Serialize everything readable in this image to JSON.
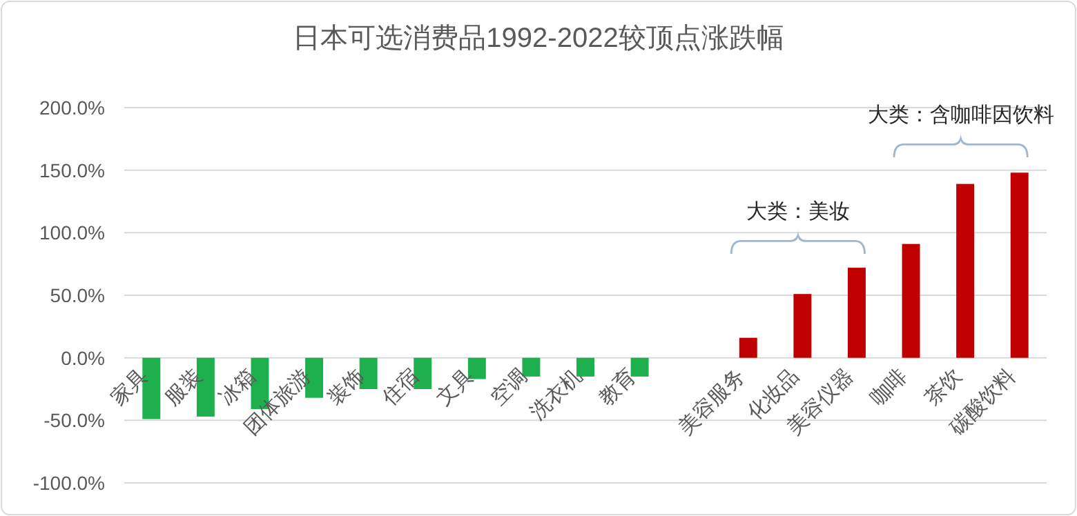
{
  "chart_data": {
    "type": "bar",
    "title": "日本可选消费品1992-2022较顶点涨跌幅",
    "categories": [
      "家具",
      "服装",
      "冰箱",
      "团体旅游",
      "装饰",
      "住宿",
      "文具",
      "空调",
      "洗衣机",
      "教育",
      null,
      "美容服务",
      "化妆品",
      "美容仪器",
      "咖啡",
      "茶饮",
      "碳酸饮料"
    ],
    "values": [
      -49,
      -47,
      -41,
      -32,
      -25,
      -25,
      -17,
      -15,
      -15,
      -15,
      null,
      16,
      51,
      72,
      91,
      139,
      148
    ],
    "colors": [
      "#1eb04e",
      "#1eb04e",
      "#1eb04e",
      "#1eb04e",
      "#1eb04e",
      "#1eb04e",
      "#1eb04e",
      "#1eb04e",
      "#1eb04e",
      "#1eb04e",
      null,
      "#c00000",
      "#c00000",
      "#c00000",
      "#c00000",
      "#c00000",
      "#c00000"
    ],
    "ylim": [
      -100,
      200
    ],
    "yticks": [
      {
        "value": -100,
        "label": "-100.0%"
      },
      {
        "value": -50,
        "label": "-50.0%"
      },
      {
        "value": 0,
        "label": "0.0%"
      },
      {
        "value": 50,
        "label": "50.0%"
      },
      {
        "value": 100,
        "label": "100.0%"
      },
      {
        "value": 150,
        "label": "150.0%"
      },
      {
        "value": 200,
        "label": "200.0%"
      }
    ],
    "grid": "y",
    "annotations": [
      "大类：美妆",
      "大类：含咖啡因饮料"
    ]
  }
}
